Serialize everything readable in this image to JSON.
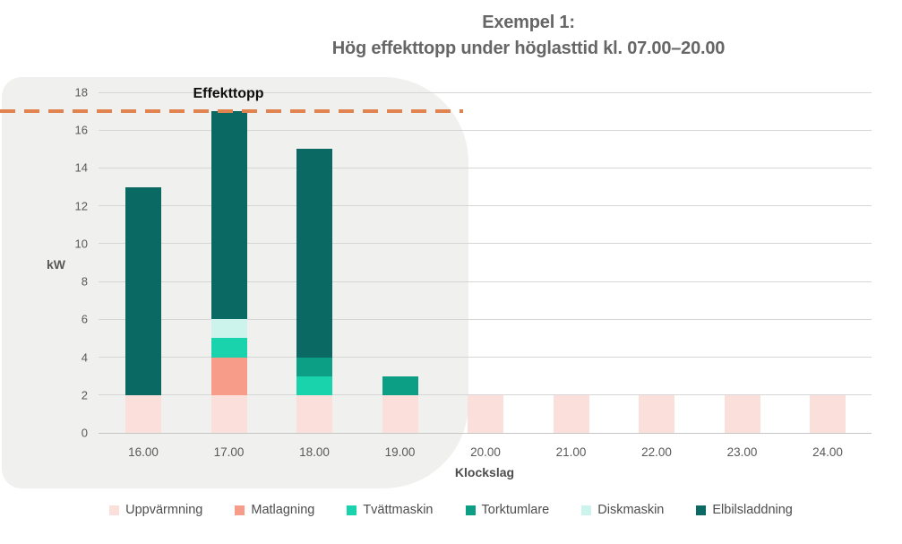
{
  "title": {
    "line1": "Exempel 1:",
    "line2": "Hög effekttopp under höglasttid kl. 07.00–20.00"
  },
  "chart_data": {
    "type": "bar",
    "stacked": true,
    "title": "Exempel 1: Hög effekttopp under höglasttid kl. 07.00–20.00",
    "xlabel": "Klockslag",
    "ylabel": "kW",
    "ylim": [
      0,
      18
    ],
    "ytick_step": 2,
    "grid": true,
    "legend_position": "bottom",
    "categories": [
      "16.00",
      "17.00",
      "18.00",
      "19.00",
      "20.00",
      "21.00",
      "22.00",
      "23.00",
      "24.00"
    ],
    "series": [
      {
        "name": "Uppvärmning",
        "color": "#fbdfda",
        "values": [
          2,
          2,
          2,
          2,
          2,
          2,
          2,
          2,
          2
        ]
      },
      {
        "name": "Matlagning",
        "color": "#f89c8a",
        "values": [
          0,
          2,
          0,
          0,
          0,
          0,
          0,
          0,
          0
        ]
      },
      {
        "name": "Tvättmaskin",
        "color": "#19d3ac",
        "values": [
          0,
          1,
          1,
          0,
          0,
          0,
          0,
          0,
          0
        ]
      },
      {
        "name": "Torktumlare",
        "color": "#0c9f86",
        "values": [
          0,
          0,
          1,
          1,
          0,
          0,
          0,
          0,
          0
        ]
      },
      {
        "name": "Diskmaskin",
        "color": "#ccf4ec",
        "values": [
          0,
          1,
          0,
          0,
          0,
          0,
          0,
          0,
          0
        ]
      },
      {
        "name": "Elbilsladdning",
        "color": "#0a6a63",
        "values": [
          11,
          11,
          11,
          0,
          0,
          0,
          0,
          0,
          0
        ]
      }
    ],
    "totals": [
      13,
      17,
      15,
      3,
      2,
      2,
      2,
      2,
      2
    ],
    "reference_line": {
      "label": "Effekttopp",
      "value": 17,
      "color": "#e0834e",
      "style": "dashed"
    }
  }
}
